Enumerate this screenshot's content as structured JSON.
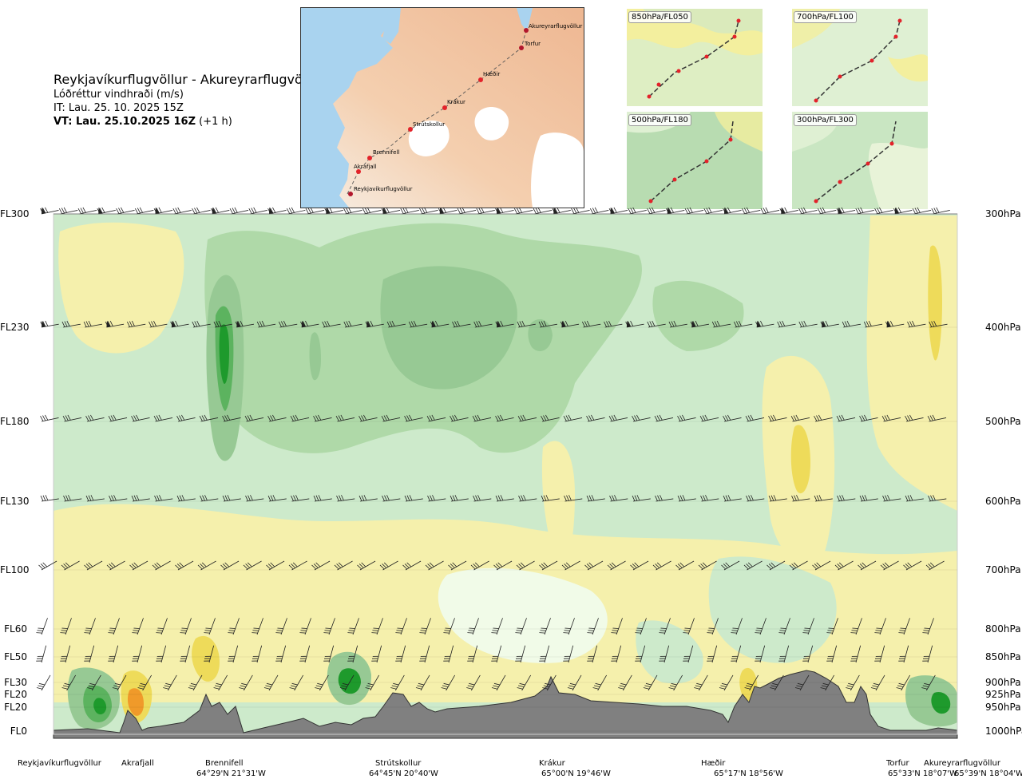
{
  "header": {
    "route": "Reykjavíkurflugvöllur - Akureyrarflugvöllur",
    "quantity": "Lóðréttur vindhraði (m/s)",
    "issue_time": "IT: Lau. 25. 10. 2025 15Z",
    "valid_time": "VT: Lau. 25.10.2025 16Z",
    "valid_offset": "(+1 h)"
  },
  "route_map": {
    "waypoints": [
      "Akureyrarflugvöllur",
      "Torfur",
      "Hæðir",
      "Krákur",
      "Strútskollur",
      "Brennifell",
      "Akrafjall",
      "Reykjavíkurflugvöllur"
    ]
  },
  "insets": [
    {
      "label": "850hPa/FL050"
    },
    {
      "label": "700hPa/FL100"
    },
    {
      "label": "500hPa/FL180"
    },
    {
      "label": "300hPa/FL300"
    }
  ],
  "chart_data": {
    "type": "heatmap",
    "title": "Lóðréttur vindhraði (m/s)",
    "flight_levels": [
      {
        "fl": "FL300",
        "pressure": "300hPa"
      },
      {
        "fl": "FL230",
        "pressure": "400hPa"
      },
      {
        "fl": "FL180",
        "pressure": "500hPa"
      },
      {
        "fl": "FL130",
        "pressure": "600hPa"
      },
      {
        "fl": "FL100",
        "pressure": "700hPa"
      },
      {
        "fl": "FL60",
        "pressure": "800hPa"
      },
      {
        "fl": "FL50",
        "pressure": "850hPa"
      },
      {
        "fl": "FL30",
        "pressure": "900hPa"
      },
      {
        "fl": "FL20",
        "pressure": "925hPa"
      },
      {
        "fl": "FL20",
        "pressure": "950hPa"
      },
      {
        "fl": "FL0",
        "pressure": "1000hPa"
      }
    ],
    "waypoints": [
      {
        "name": "Reykjavíkurflugvöllur",
        "coord": ""
      },
      {
        "name": "Akrafjall",
        "coord": ""
      },
      {
        "name": "Brennifell",
        "coord": "64°29'N 21°31'W"
      },
      {
        "name": "Strútskollur",
        "coord": "64°45'N 20°40'W"
      },
      {
        "name": "Krákur",
        "coord": "65°00'N 19°46'W"
      },
      {
        "name": "Hæðir",
        "coord": "65°17'N 18°56'W"
      },
      {
        "name": "Torfur",
        "coord": "65°33'N 18°07'W"
      },
      {
        "name": "Akureyrarflugvöllur",
        "coord": "65°39'N 18°04'W"
      }
    ],
    "colors": {
      "strong_down_dark": "#1e9a2c",
      "strong_down": "#5cb35f",
      "down_medium": "#97c994",
      "down_weak": "#afd9a8",
      "down_very_weak": "#cdeacb",
      "neutral": "#f1fbe8",
      "up_weak": "#f5f0ac",
      "up_medium": "#eedb5a",
      "up_strong": "#f09a2a",
      "terrain": "#808080"
    }
  }
}
